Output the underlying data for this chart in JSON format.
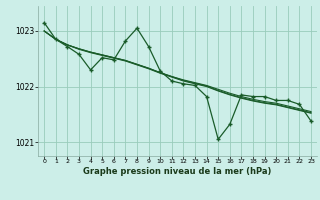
{
  "title": "Graphe pression niveau de la mer (hPa)",
  "background_color": "#cceee8",
  "grid_color": "#99ccbb",
  "line_color": "#1a5c2a",
  "xlim": [
    -0.5,
    23.5
  ],
  "ylim": [
    1020.75,
    1023.45
  ],
  "yticks": [
    1021,
    1022,
    1023
  ],
  "xticks": [
    0,
    1,
    2,
    3,
    4,
    5,
    6,
    7,
    8,
    9,
    10,
    11,
    12,
    13,
    14,
    15,
    16,
    17,
    18,
    19,
    20,
    21,
    22,
    23
  ],
  "series": [
    {
      "x": [
        0,
        1,
        2,
        3,
        4,
        5,
        6,
        7,
        8,
        9,
        10,
        11,
        12,
        13,
        14,
        15,
        16,
        17,
        18,
        19,
        20,
        21,
        22,
        23
      ],
      "y": [
        1023.0,
        1022.85,
        1022.75,
        1022.68,
        1022.62,
        1022.57,
        1022.52,
        1022.47,
        1022.4,
        1022.33,
        1022.25,
        1022.18,
        1022.12,
        1022.07,
        1022.02,
        1021.95,
        1021.88,
        1021.82,
        1021.77,
        1021.73,
        1021.7,
        1021.65,
        1021.6,
        1021.55
      ],
      "has_markers": false,
      "linewidth": 0.8
    },
    {
      "x": [
        0,
        1,
        2,
        3,
        4,
        5,
        6,
        7,
        8,
        9,
        10,
        11,
        12,
        13,
        14,
        15,
        16,
        17,
        18,
        19,
        20,
        21,
        22,
        23
      ],
      "y": [
        1023.0,
        1022.85,
        1022.75,
        1022.68,
        1022.62,
        1022.57,
        1022.52,
        1022.47,
        1022.4,
        1022.33,
        1022.25,
        1022.18,
        1022.11,
        1022.06,
        1022.01,
        1021.93,
        1021.86,
        1021.8,
        1021.75,
        1021.71,
        1021.68,
        1021.63,
        1021.58,
        1021.53
      ],
      "has_markers": false,
      "linewidth": 0.8
    },
    {
      "x": [
        0,
        1,
        2,
        3,
        4,
        5,
        6,
        7,
        8,
        9,
        10,
        11,
        12,
        13,
        14,
        15,
        16,
        17,
        18,
        19,
        20,
        21,
        22,
        23
      ],
      "y": [
        1023.0,
        1022.85,
        1022.75,
        1022.67,
        1022.61,
        1022.56,
        1022.51,
        1022.46,
        1022.39,
        1022.32,
        1022.24,
        1022.17,
        1022.1,
        1022.05,
        1022.0,
        1021.92,
        1021.85,
        1021.79,
        1021.74,
        1021.7,
        1021.67,
        1021.62,
        1021.57,
        1021.52
      ],
      "has_markers": false,
      "linewidth": 0.8
    },
    {
      "x": [
        0,
        1,
        2,
        3,
        4,
        5,
        6,
        7,
        8,
        9,
        10,
        11,
        12,
        13,
        14,
        15,
        16,
        17,
        18,
        19,
        20,
        21,
        22,
        23
      ],
      "y": [
        1023.15,
        1022.85,
        1022.72,
        1022.58,
        1022.3,
        1022.52,
        1022.48,
        1022.82,
        1023.05,
        1022.72,
        1022.28,
        1022.1,
        1022.05,
        1022.02,
        1021.82,
        1021.05,
        1021.32,
        1021.85,
        1021.82,
        1021.82,
        1021.75,
        1021.75,
        1021.68,
        1021.38
      ],
      "has_markers": true,
      "linewidth": 0.9
    }
  ]
}
